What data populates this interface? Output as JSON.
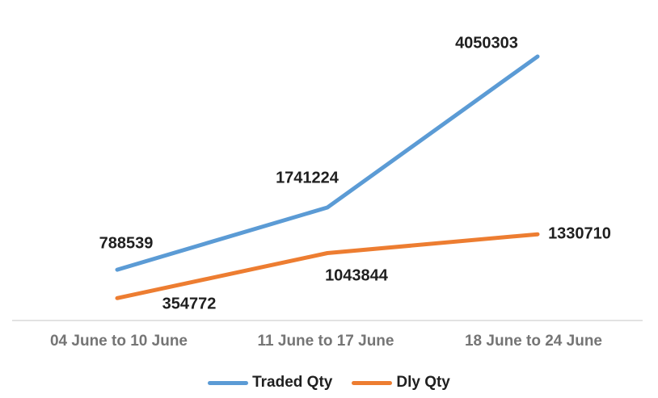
{
  "chart_data": {
    "type": "line",
    "title": "",
    "xlabel": "",
    "ylabel": "",
    "categories": [
      "04 June to 10 June",
      "11 June to 17 June",
      "18 June to 24 June"
    ],
    "series": [
      {
        "name": "Traded Qty",
        "color": "#5B9BD5",
        "values": [
          788539,
          1741224,
          4050303
        ]
      },
      {
        "name": "Dly Qty",
        "color": "#ED7D31",
        "values": [
          354772,
          1043844,
          1330710
        ]
      }
    ],
    "ylim": [
      0,
      4100000
    ],
    "grid": false,
    "y_axis_visible": false,
    "data_labels": true,
    "legend_position": "bottom"
  },
  "colors": {
    "background": "#FFFFFF",
    "axis_line": "#D9D9D9",
    "category_label": "#757575",
    "data_label": "#1F1F1F"
  }
}
